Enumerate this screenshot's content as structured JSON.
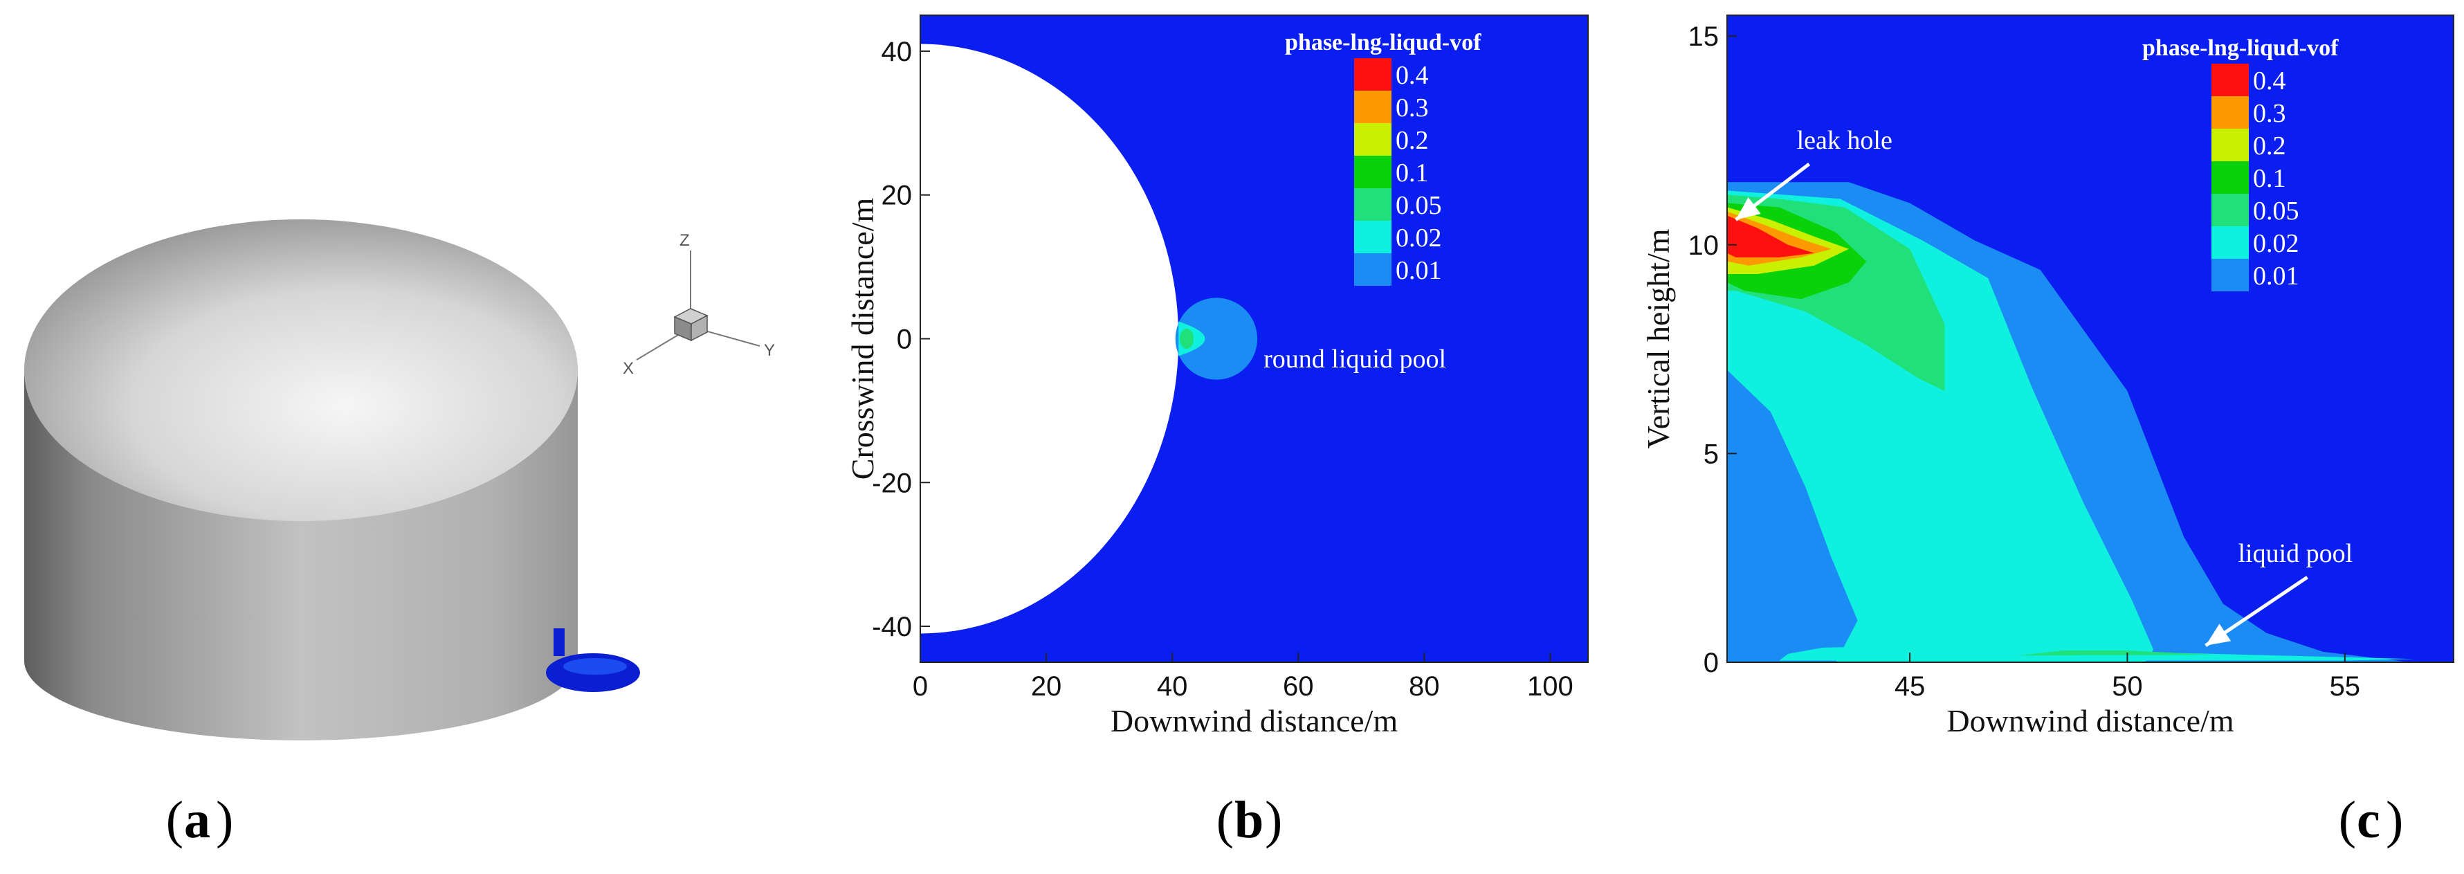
{
  "colors": {
    "background": "#0a1ef0",
    "band_0_01": "#1c8cf5",
    "band_0_02": "#0ff0de",
    "band_0_05": "#20e07a",
    "band_0_1": "#0ad20a",
    "band_0_2": "#c8f000",
    "band_0_3": "#ff9900",
    "band_0_4": "#ff1010",
    "tank_white": "#ffffff",
    "pool_blue": "#0a1ed2"
  },
  "panel_a": {
    "label": "a",
    "triad": {
      "z": "Z",
      "x": "X",
      "y": "Y"
    }
  },
  "chart_data": [
    {
      "type": "heatmap",
      "panel": "b",
      "title": "",
      "xlabel": "Downwind distance/m",
      "ylabel": "Crosswind distance/m",
      "xlim": [
        0,
        106
      ],
      "ylim": [
        -45,
        45
      ],
      "xticks": [
        0,
        20,
        40,
        60,
        80,
        100
      ],
      "yticks": [
        -40,
        -20,
        0,
        20,
        40
      ],
      "legend": {
        "title": "phase-lng-liqud-vof",
        "levels": [
          "0.4",
          "0.3",
          "0.2",
          "0.1",
          "0.05",
          "0.02",
          "0.01"
        ],
        "position": "top-right"
      },
      "features": {
        "tank_radius": 41,
        "pool_center": [
          47,
          0
        ],
        "pool_radius": 6.5
      },
      "annotations": [
        {
          "text": "round liquid pool",
          "x": 54.5,
          "y": -4
        }
      ]
    },
    {
      "type": "heatmap",
      "panel": "c",
      "title": "",
      "xlabel": "Downwind distance/m",
      "ylabel": "Vertical height/m",
      "xlim": [
        40.8,
        57.5
      ],
      "ylim": [
        0,
        15.5
      ],
      "xticks": [
        45,
        50,
        55
      ],
      "yticks": [
        0,
        5,
        10,
        15
      ],
      "legend": {
        "title": "phase-lng-liqud-vof",
        "levels": [
          "0.4",
          "0.3",
          "0.2",
          "0.1",
          "0.05",
          "0.02",
          "0.01"
        ],
        "position": "top-right"
      },
      "annotations": [
        {
          "text": "leak hole",
          "x": 42.4,
          "y": 12.3,
          "arrow_to": [
            41.0,
            10.6
          ]
        },
        {
          "text": "liquid pool",
          "x": 53.5,
          "y": 2.4,
          "arrow_to": [
            51.8,
            0.4
          ]
        }
      ]
    }
  ],
  "panel_b": {
    "label": "b"
  },
  "panel_c": {
    "label": "c"
  }
}
